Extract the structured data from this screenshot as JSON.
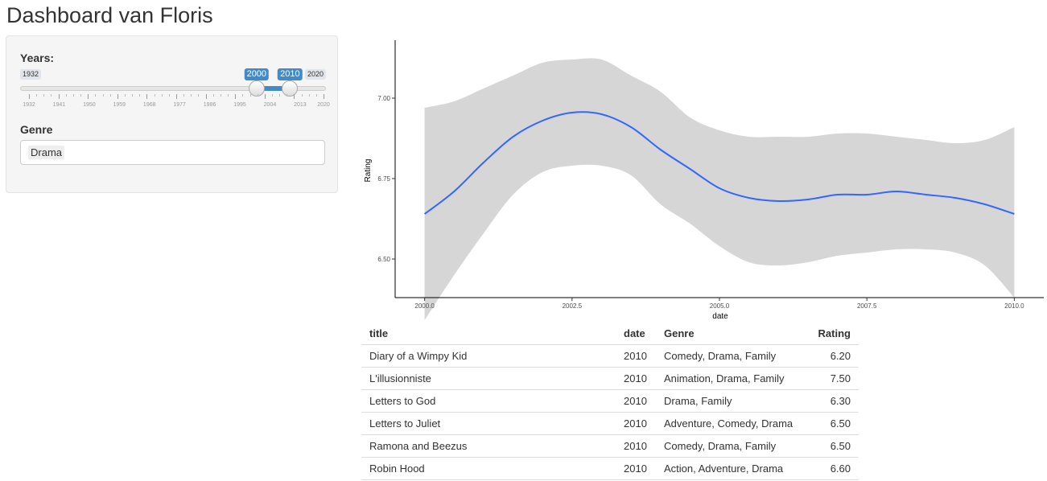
{
  "page": {
    "title": "Dashboard van Floris"
  },
  "sidebar": {
    "years": {
      "label": "Years:",
      "min": "1932",
      "max": "2020",
      "from": "2000",
      "to": "2010",
      "from_value": 2000,
      "to_value": 2010,
      "range_min": 1932,
      "range_max": 2020,
      "tick_labels": [
        "1932",
        "1941",
        "1950",
        "1959",
        "1968",
        "1977",
        "1986",
        "1995",
        "2004",
        "2013",
        "2020"
      ],
      "accent_color": "#428bca"
    },
    "genre": {
      "label": "Genre",
      "selected": "Drama"
    }
  },
  "chart_data": {
    "type": "line",
    "xlabel": "date",
    "ylabel": "Rating",
    "xlim": [
      1999.5,
      2010.5
    ],
    "ylim": [
      6.38,
      7.18
    ],
    "xticks": [
      2000.0,
      2002.5,
      2005.0,
      2007.5,
      2010.0
    ],
    "xtick_labels": [
      "2000.0",
      "2002.5",
      "2005.0",
      "2007.5",
      "2010.0"
    ],
    "yticks": [
      6.5,
      6.75,
      7.0
    ],
    "ytick_labels": [
      "6.50",
      "6.75",
      "7.00"
    ],
    "grid": false,
    "series": [
      {
        "color": "#3366ff",
        "x": [
          2000.0,
          2000.5,
          2001.0,
          2001.5,
          2002.0,
          2002.5,
          2003.0,
          2003.5,
          2004.0,
          2004.5,
          2005.0,
          2005.5,
          2006.0,
          2006.5,
          2007.0,
          2007.5,
          2008.0,
          2008.5,
          2009.0,
          2009.5,
          2010.0
        ],
        "y": [
          6.64,
          6.71,
          6.8,
          6.88,
          6.93,
          6.955,
          6.95,
          6.91,
          6.84,
          6.78,
          6.72,
          6.69,
          6.68,
          6.685,
          6.7,
          6.7,
          6.71,
          6.7,
          6.69,
          6.67,
          6.64
        ],
        "ci_lower": [
          6.31,
          6.45,
          6.58,
          6.7,
          6.77,
          6.79,
          6.79,
          6.76,
          6.67,
          6.61,
          6.54,
          6.49,
          6.48,
          6.49,
          6.51,
          6.52,
          6.53,
          6.53,
          6.52,
          6.48,
          6.38
        ],
        "ci_upper": [
          6.97,
          6.99,
          7.03,
          7.07,
          7.11,
          7.12,
          7.12,
          7.07,
          7.02,
          6.94,
          6.9,
          6.88,
          6.88,
          6.88,
          6.89,
          6.89,
          6.88,
          6.87,
          6.86,
          6.87,
          6.91
        ]
      }
    ],
    "ci_color": "#d6d6d6"
  },
  "table": {
    "headers": [
      "title",
      "date",
      "Genre",
      "Rating"
    ],
    "rows": [
      [
        "Diary of a Wimpy Kid",
        "2010",
        "Comedy, Drama, Family",
        "6.20"
      ],
      [
        "L'illusionniste",
        "2010",
        "Animation, Drama, Family",
        "7.50"
      ],
      [
        "Letters to God",
        "2010",
        "Drama, Family",
        "6.30"
      ],
      [
        "Letters to Juliet",
        "2010",
        "Adventure, Comedy, Drama",
        "6.50"
      ],
      [
        "Ramona and Beezus",
        "2010",
        "Comedy, Drama, Family",
        "6.50"
      ],
      [
        "Robin Hood",
        "2010",
        "Action, Adventure, Drama",
        "6.60"
      ]
    ]
  }
}
